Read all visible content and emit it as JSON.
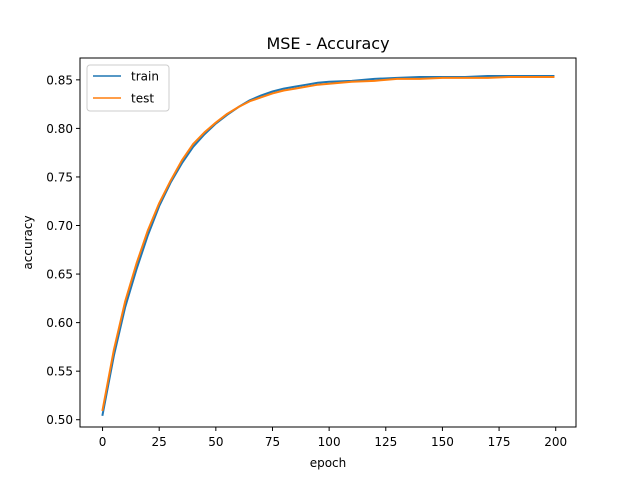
{
  "chart_data": {
    "type": "line",
    "title": "MSE - Accuracy",
    "xlabel": "epoch",
    "ylabel": "accuracy",
    "xlim": [
      -9.95,
      208.95
    ],
    "ylim": [
      0.4925,
      0.8725
    ],
    "xticks": [
      0,
      25,
      50,
      75,
      100,
      125,
      150,
      175,
      200
    ],
    "xtick_labels": [
      "0",
      "25",
      "50",
      "75",
      "100",
      "125",
      "150",
      "175",
      "200"
    ],
    "yticks": [
      0.5,
      0.55,
      0.6,
      0.65,
      0.7,
      0.75,
      0.8,
      0.85
    ],
    "ytick_labels": [
      "0.50",
      "0.55",
      "0.60",
      "0.65",
      "0.70",
      "0.75",
      "0.80",
      "0.85"
    ],
    "grid": false,
    "legend": "top-left",
    "series": [
      {
        "name": "train",
        "color": "#1f77b4",
        "x": [
          0,
          5,
          10,
          15,
          20,
          25,
          30,
          35,
          40,
          45,
          50,
          55,
          60,
          65,
          70,
          75,
          80,
          85,
          90,
          95,
          100,
          110,
          120,
          130,
          140,
          150,
          160,
          170,
          180,
          190,
          199
        ],
        "y": [
          0.505,
          0.566,
          0.616,
          0.655,
          0.69,
          0.72,
          0.744,
          0.764,
          0.781,
          0.794,
          0.805,
          0.814,
          0.822,
          0.829,
          0.834,
          0.838,
          0.841,
          0.843,
          0.845,
          0.847,
          0.848,
          0.849,
          0.851,
          0.852,
          0.853,
          0.853,
          0.853,
          0.854,
          0.854,
          0.854,
          0.854
        ]
      },
      {
        "name": "test",
        "color": "#ff7f0e",
        "x": [
          0,
          5,
          10,
          15,
          20,
          25,
          30,
          35,
          40,
          45,
          50,
          55,
          60,
          65,
          70,
          75,
          80,
          85,
          90,
          95,
          100,
          110,
          120,
          130,
          140,
          150,
          160,
          170,
          180,
          190,
          199
        ],
        "y": [
          0.51,
          0.572,
          0.622,
          0.661,
          0.695,
          0.723,
          0.746,
          0.767,
          0.784,
          0.796,
          0.806,
          0.815,
          0.822,
          0.828,
          0.832,
          0.836,
          0.839,
          0.841,
          0.843,
          0.845,
          0.846,
          0.848,
          0.849,
          0.851,
          0.851,
          0.852,
          0.852,
          0.852,
          0.853,
          0.853,
          0.853
        ]
      }
    ]
  }
}
